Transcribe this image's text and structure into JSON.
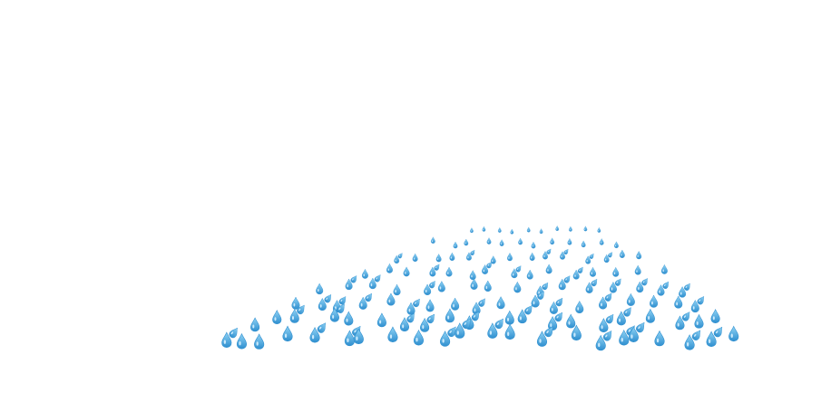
{
  "scene": {
    "name": "sweat-droplets-field",
    "background_color": "#ffffff",
    "droplet": {
      "icon": "water-droplet-icon",
      "fill_color": "#5cb8e8",
      "edge_color": "#2f8fcf",
      "highlight_color": "#d8f1ff"
    },
    "rows": [
      {
        "count": 10,
        "layout": "sparse"
      },
      {
        "count": 12,
        "layout": "sparse"
      },
      {
        "count": 14,
        "layout": "pairs"
      },
      {
        "count": 15,
        "layout": "pairs"
      },
      {
        "count": 16,
        "layout": "pairs"
      },
      {
        "count": 18,
        "layout": "pairs"
      },
      {
        "count": 20,
        "layout": "pairs"
      },
      {
        "count": 22,
        "layout": "pairs"
      }
    ]
  }
}
